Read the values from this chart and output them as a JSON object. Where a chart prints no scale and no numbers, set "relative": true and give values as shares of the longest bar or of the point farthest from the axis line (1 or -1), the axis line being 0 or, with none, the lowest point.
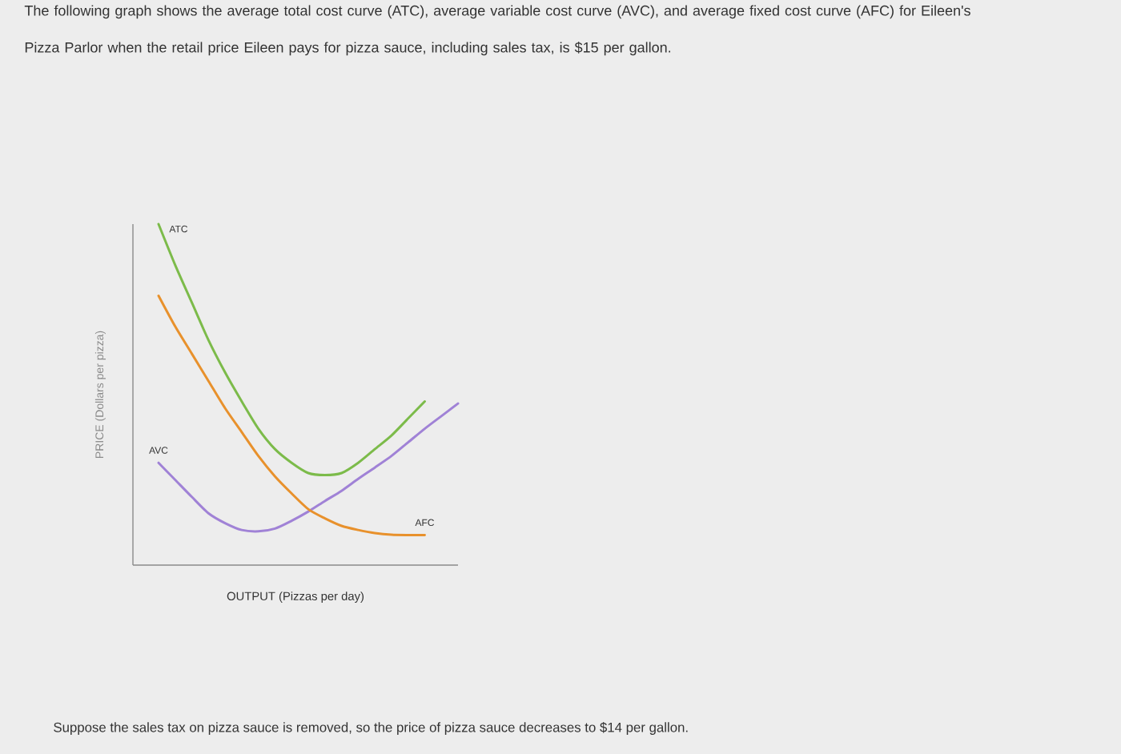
{
  "chart_data": {
    "type": "line",
    "title": "The following graph shows the average total cost curve (ATC), average variable cost curve (AVC), and average fixed cost curve (AFC) for Eileen's Pizza Parlor when the retail price Eileen pays for pizza sauce, including sales tax, is $15 per gallon.",
    "xlabel": "OUTPUT (Pizzas per day)",
    "ylabel": "PRICE (Dollars per pizza)",
    "annotations": [
      "Suppose the sales tax on pizza sauce is removed, so the price of pizza sauce decreases to $14 per gallon."
    ],
    "categories": [
      null,
      null,
      null,
      null,
      null,
      null,
      null,
      null,
      null,
      null,
      null,
      null,
      null,
      null,
      null,
      null,
      null,
      null,
      null
    ],
    "relative": true,
    "series": [
      {
        "name": "ATC",
        "color": "#7cbb4a",
        "values": [
          1.0,
          0.88,
          0.77,
          0.66,
          0.565,
          0.48,
          0.4,
          0.34,
          0.3,
          0.27,
          0.264,
          0.27,
          0.3,
          0.34,
          0.38,
          0.43,
          0.48,
          null,
          null
        ]
      },
      {
        "name": "AVC",
        "color": "#a082d6",
        "values": [
          0.3,
          0.25,
          0.2,
          0.152,
          0.123,
          0.103,
          0.099,
          0.107,
          0.13,
          0.157,
          0.188,
          0.218,
          0.253,
          0.286,
          0.32,
          0.36,
          0.4,
          0.437,
          0.474
        ]
      },
      {
        "name": "AFC",
        "color": "#e8912c",
        "values": [
          0.79,
          0.7,
          0.62,
          0.54,
          0.46,
          0.39,
          0.32,
          0.26,
          0.21,
          0.164,
          0.137,
          0.115,
          0.103,
          0.094,
          0.089,
          0.088,
          0.088,
          null,
          null
        ]
      }
    ]
  }
}
